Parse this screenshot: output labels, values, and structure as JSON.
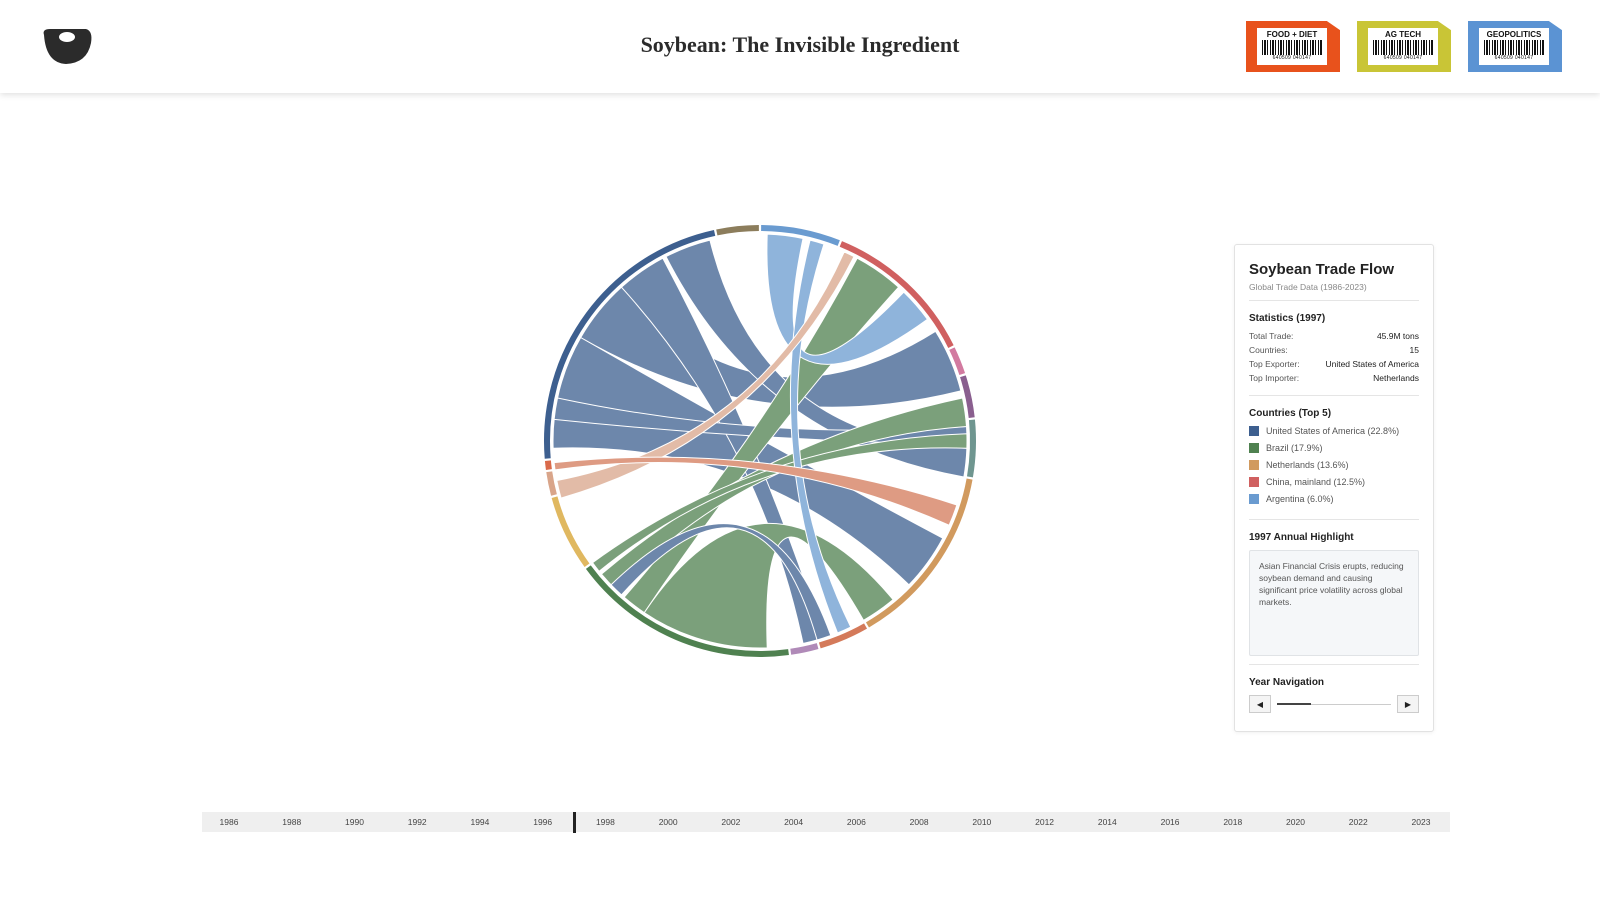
{
  "header": {
    "title": "Soybean: The Invisible Ingredient",
    "tags": [
      {
        "label": "FOOD + DIET",
        "code": "640509 040147",
        "color": "#e8521c"
      },
      {
        "label": "AG TECH",
        "code": "640509 040147",
        "color": "#c9c536"
      },
      {
        "label": "GEOPOLITICS",
        "code": "640509 040147",
        "color": "#5b93d3"
      }
    ]
  },
  "panel": {
    "title": "Soybean Trade Flow",
    "subtitle": "Global Trade Data (1986-2023)",
    "statistics_title": "Statistics (1997)",
    "stats": [
      {
        "label": "Total Trade:",
        "value": "45.9M tons"
      },
      {
        "label": "Countries:",
        "value": "15"
      },
      {
        "label": "Top Exporter:",
        "value": "United States of America"
      },
      {
        "label": "Top Importer:",
        "value": "Netherlands"
      }
    ],
    "countries_title": "Countries (Top 5)",
    "countries": [
      {
        "label": "United States of America (22.8%)",
        "color": "#3d5f8f"
      },
      {
        "label": "Brazil (17.9%)",
        "color": "#4f8150"
      },
      {
        "label": "Netherlands (13.6%)",
        "color": "#d19a5e"
      },
      {
        "label": "China, mainland (12.5%)",
        "color": "#d06060"
      },
      {
        "label": "Argentina (6.0%)",
        "color": "#6a9bd0"
      }
    ],
    "highlight_title": "1997 Annual Highlight",
    "highlight_text": "Asian Financial Crisis erupts, reducing soybean demand and causing significant price volatility across global markets.",
    "navigation_title": "Year Navigation"
  },
  "timeline": {
    "years": [
      "1986",
      "1988",
      "1990",
      "1992",
      "1994",
      "1996",
      "1998",
      "2000",
      "2002",
      "2004",
      "2006",
      "2008",
      "2010",
      "2012",
      "2014",
      "2016",
      "2018",
      "2020",
      "2022",
      "2023"
    ]
  }
}
